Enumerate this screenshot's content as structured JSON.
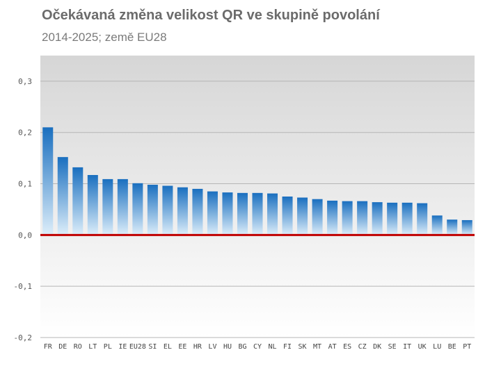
{
  "chart_data": {
    "type": "bar",
    "title": "Očekávaná změna velikost QR ve skupině povolání",
    "subtitle": "2014-2025; země EU28",
    "xlabel": "",
    "ylabel": "",
    "ylim": [
      -0.2,
      0.35
    ],
    "yticks": [
      0.3,
      0.2,
      0.1,
      0.0,
      -0.1,
      -0.2
    ],
    "ytick_labels": [
      "0,3",
      "0,2",
      "0,1",
      "0,0",
      "-0,1",
      "-0,2"
    ],
    "grid": true,
    "categories": [
      "FR",
      "DE",
      "RO",
      "LT",
      "PL",
      "IE",
      "EU28",
      "SI",
      "EL",
      "EE",
      "HR",
      "LV",
      "HU",
      "BG",
      "CY",
      "NL",
      "FI",
      "SK",
      "MT",
      "AT",
      "ES",
      "CZ",
      "DK",
      "SE",
      "IT",
      "UK",
      "LU",
      "BE",
      "PT"
    ],
    "values": [
      0.21,
      0.152,
      0.132,
      0.117,
      0.109,
      0.109,
      0.101,
      0.098,
      0.096,
      0.093,
      0.09,
      0.085,
      0.083,
      0.082,
      0.082,
      0.081,
      0.075,
      0.073,
      0.07,
      0.067,
      0.066,
      0.066,
      0.064,
      0.063,
      0.063,
      0.062,
      0.038,
      0.03,
      0.029
    ],
    "colors": {
      "bar_top": "#1a6fbf",
      "bar_bottom": "#ddeefa",
      "zero_line": "#c00000",
      "plot_bg_top": "#d6d6d6",
      "plot_bg_bottom": "#ffffff",
      "grid": "#b5b5b5"
    }
  }
}
